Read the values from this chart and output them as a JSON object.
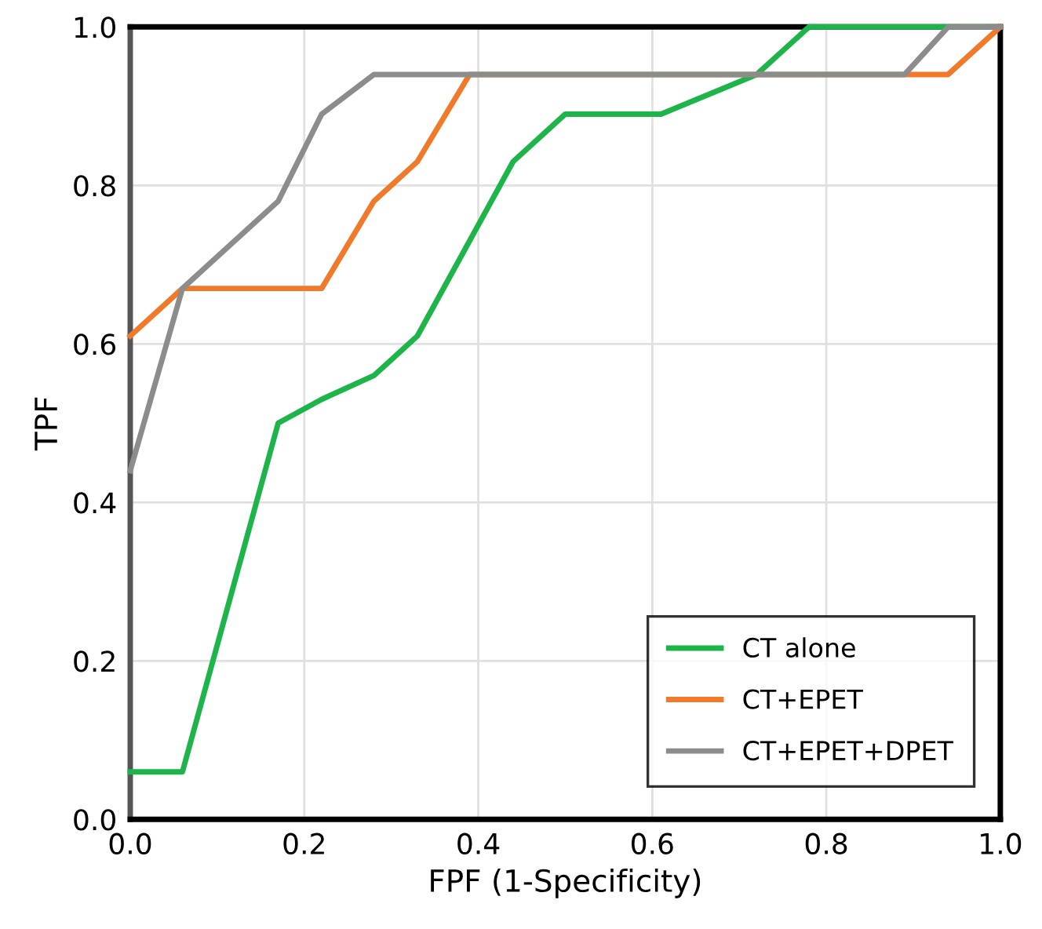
{
  "chart_data": {
    "type": "line",
    "xlabel": "FPF (1-Specificity)",
    "ylabel": "TPF",
    "xlim": [
      0,
      1
    ],
    "ylim": [
      0,
      1
    ],
    "xticks": [
      "0.0",
      0.2,
      0.4,
      0.6,
      0.8,
      "1.0"
    ],
    "yticks": [
      "0.0",
      0.2,
      0.4,
      0.6,
      0.8,
      "1.0"
    ],
    "grid": true,
    "legend": "bottom right",
    "marker": "none",
    "line_style": "solid",
    "series": [
      {
        "name": "CT alone",
        "color": "#1db44a",
        "x": [
          0,
          0.06,
          0.17,
          0.22,
          0.28,
          0.33,
          0.44,
          0.5,
          0.61,
          0.72,
          0.78,
          1
        ],
        "values": [
          0.06,
          0.06,
          0.5,
          0.53,
          0.56,
          0.61,
          0.83,
          0.89,
          0.89,
          0.94,
          1,
          1
        ]
      },
      {
        "name": "CT+EPET",
        "color": "#f07a2a",
        "x": [
          0,
          0.06,
          0.22,
          0.28,
          0.33,
          0.39,
          0.89,
          0.94,
          1
        ],
        "values": [
          0.61,
          0.67,
          0.67,
          0.78,
          0.83,
          0.94,
          0.94,
          0.94,
          1
        ]
      },
      {
        "name": "CT+EPET+DPET",
        "color": "#8c8c8c",
        "x": [
          0,
          0.06,
          0.17,
          0.22,
          0.28,
          0.89,
          0.94,
          1
        ],
        "values": [
          0.44,
          0.67,
          0.78,
          0.89,
          0.94,
          0.94,
          1,
          1
        ]
      }
    ]
  }
}
